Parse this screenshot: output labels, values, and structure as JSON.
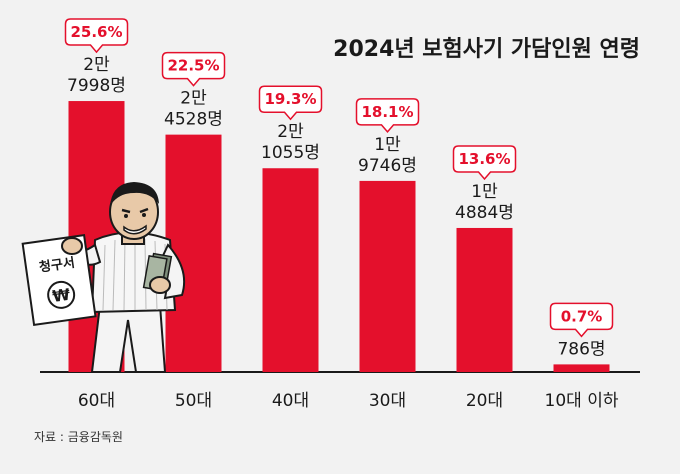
{
  "title": "2024년 보험사기 가담인원 연령",
  "source": "자료 : 금융감독원",
  "illustration_text": "청구서",
  "colors": {
    "bar": "#e4102c",
    "bubble_text": "#e4102c",
    "background": "#f2f2f2"
  },
  "chart_data": {
    "type": "bar",
    "categories": [
      "60대",
      "50대",
      "40대",
      "30대",
      "20대",
      "10대 이하"
    ],
    "values": [
      27998,
      24528,
      21055,
      19746,
      14884,
      786
    ],
    "value_labels": [
      [
        "2만",
        "7998명"
      ],
      [
        "2만",
        "4528명"
      ],
      [
        "2만",
        "1055명"
      ],
      [
        "1만",
        "9746명"
      ],
      [
        "1만",
        "4884명"
      ],
      [
        "786명"
      ]
    ],
    "percent_labels": [
      "25.6%",
      "22.5%",
      "19.3%",
      "18.1%",
      "13.6%",
      "0.7%"
    ],
    "title": "2024년 보험사기 가담인원 연령",
    "xlabel": "",
    "ylabel": "",
    "ylim": [
      0,
      31000
    ],
    "grid": false,
    "legend": "none"
  }
}
